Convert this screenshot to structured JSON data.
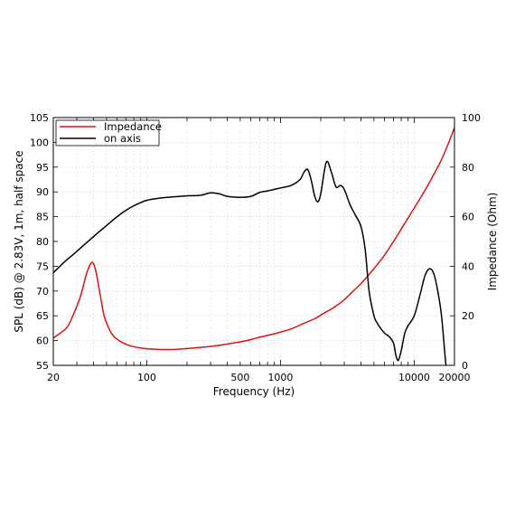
{
  "chart_data": {
    "type": "line",
    "title": "",
    "xlabel": "Frequency (Hz)",
    "ylabel": "SPL (dB) @ 2.83V, 1m, half space",
    "y2label": "Impedance (Ohm)",
    "xscale": "log",
    "xlim": [
      20,
      20000
    ],
    "ylim": [
      55,
      105
    ],
    "y2lim": [
      0,
      100
    ],
    "grid": true,
    "legend_position": "top-left",
    "x_tick_labels": [
      "20",
      "100",
      "500",
      "1000",
      "10000",
      "20000"
    ],
    "x_tick_values": [
      20,
      100,
      500,
      1000,
      10000,
      20000
    ],
    "y_tick_labels": [
      "55",
      "60",
      "65",
      "70",
      "75",
      "80",
      "85",
      "90",
      "95",
      "100",
      "105"
    ],
    "y2_tick_labels": [
      "0",
      "20",
      "40",
      "60",
      "80",
      "100"
    ],
    "series": [
      {
        "name": "Impedance",
        "axis": "right",
        "color": "#dd1111",
        "x": [
          20,
          25,
          28,
          32,
          35,
          38,
          40,
          42,
          45,
          48,
          52,
          56,
          62,
          70,
          80,
          100,
          130,
          170,
          220,
          300,
          400,
          500,
          600,
          700,
          800,
          1000,
          1200,
          1500,
          1800,
          2000,
          2200,
          2500,
          3000,
          3500,
          4000,
          5000,
          6000,
          7000,
          8000,
          10000,
          12000,
          14000,
          16000,
          18000,
          20000
        ],
        "values": [
          11,
          15,
          20,
          28,
          36,
          41,
          41,
          37,
          28,
          20,
          15,
          12,
          10,
          8.5,
          7.5,
          6.7,
          6.4,
          6.5,
          7,
          7.6,
          8.6,
          9.5,
          10.4,
          11.4,
          12.1,
          13.4,
          14.7,
          17,
          18.8,
          20.3,
          21.6,
          23.3,
          26.5,
          30,
          33,
          39,
          44.5,
          50,
          55,
          63.5,
          70.5,
          77,
          83,
          89.5,
          96
        ]
      },
      {
        "name": "on axis",
        "axis": "left",
        "color": "#000000",
        "x": [
          20,
          25,
          30,
          40,
          50,
          60,
          70,
          80,
          100,
          130,
          160,
          200,
          250,
          300,
          350,
          400,
          500,
          600,
          700,
          800,
          1000,
          1200,
          1400,
          1500,
          1600,
          1700,
          1800,
          1900,
          2000,
          2200,
          2400,
          2600,
          2800,
          3000,
          3300,
          3600,
          4000,
          4300,
          4600,
          5000,
          5300,
          5600,
          6000,
          6500,
          7000,
          7300,
          7600,
          8000,
          8500,
          9000,
          10000,
          11000,
          12000,
          13000,
          14000,
          15000,
          16000,
          17000,
          17500
        ],
        "values": [
          73.7,
          76.2,
          78,
          81,
          83.2,
          85,
          86.3,
          87.2,
          88.3,
          88.8,
          89,
          89.2,
          89.3,
          89.8,
          89.6,
          89.1,
          88.9,
          89.1,
          89.9,
          90.2,
          90.8,
          91.3,
          92.5,
          94,
          94.5,
          92.3,
          89.2,
          88,
          89.6,
          96,
          94,
          91,
          91.3,
          90.5,
          87.5,
          85.5,
          83,
          78.3,
          70,
          65,
          63.5,
          62.5,
          61.5,
          60.8,
          59.5,
          57,
          56,
          58,
          61.5,
          63,
          65,
          69,
          73,
          74.5,
          73.5,
          70,
          65,
          57,
          53.5
        ]
      }
    ]
  }
}
